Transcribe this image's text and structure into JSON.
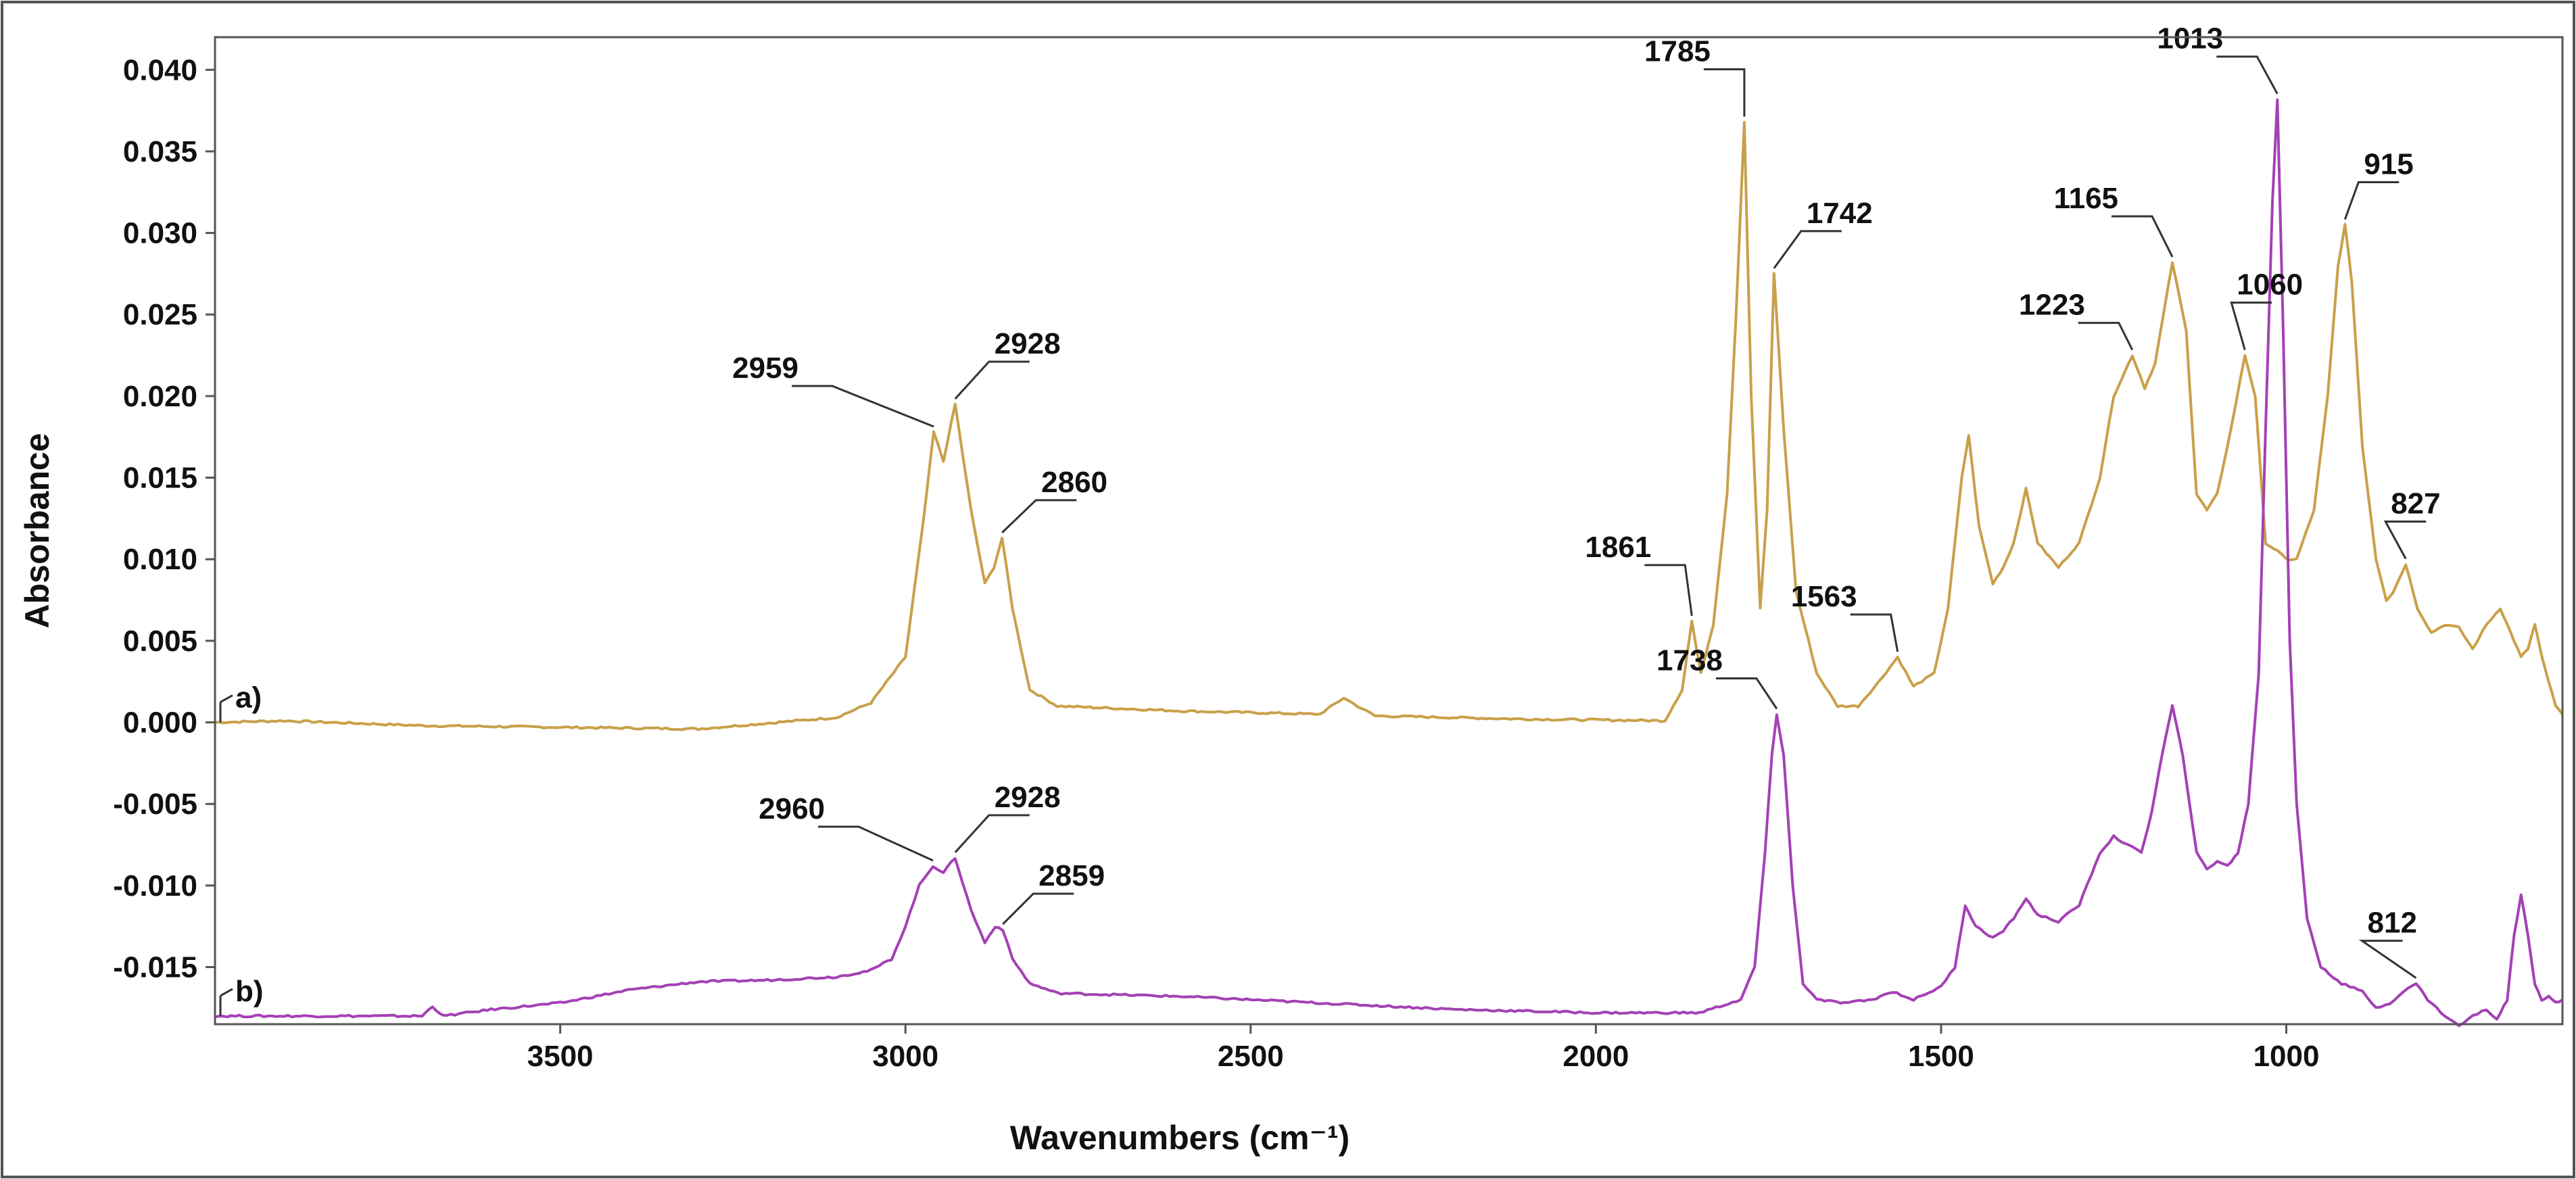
{
  "chart_data": {
    "type": "line",
    "title": "",
    "xlabel": "Wavenumbers (cm⁻¹)",
    "ylabel": "Absorbance",
    "x_reversed": true,
    "xlim": [
      4000,
      600
    ],
    "ylim": [
      -0.0185,
      0.042
    ],
    "x_ticks": [
      3500,
      3000,
      2500,
      2000,
      1500,
      1000
    ],
    "x_tick_labels": [
      "3500",
      "3000",
      "2500",
      "2000",
      "1500",
      "1000"
    ],
    "y_ticks": [
      0.04,
      0.035,
      0.03,
      0.025,
      0.02,
      0.015,
      0.01,
      0.005,
      0.0,
      -0.005,
      -0.01,
      -0.015
    ],
    "y_tick_labels": [
      "0.040",
      "0.035",
      "0.030",
      "0.025",
      "0.020",
      "0.015",
      "0.010",
      "0.005",
      "0.000",
      "-0.005",
      "-0.010",
      "-0.015"
    ],
    "grid": false,
    "series": [
      {
        "tag": "a)",
        "color": "#c9a04a",
        "points": [
          [
            4000,
            0.0
          ],
          [
            3900,
            0.0001
          ],
          [
            3700,
            -0.0002
          ],
          [
            3500,
            -0.0003
          ],
          [
            3300,
            -0.0004
          ],
          [
            3100,
            0.0003
          ],
          [
            3050,
            0.0012
          ],
          [
            3000,
            0.004
          ],
          [
            2975,
            0.012
          ],
          [
            2959,
            0.0178
          ],
          [
            2945,
            0.016
          ],
          [
            2928,
            0.0195
          ],
          [
            2905,
            0.013
          ],
          [
            2885,
            0.0085
          ],
          [
            2872,
            0.0095
          ],
          [
            2860,
            0.0113
          ],
          [
            2845,
            0.007
          ],
          [
            2820,
            0.002
          ],
          [
            2780,
            0.001
          ],
          [
            2600,
            0.0007
          ],
          [
            2400,
            0.0005
          ],
          [
            2365,
            0.0015
          ],
          [
            2345,
            0.001
          ],
          [
            2320,
            0.0004
          ],
          [
            2100,
            0.0002
          ],
          [
            1900,
            0.0001
          ],
          [
            1875,
            0.002
          ],
          [
            1861,
            0.0062
          ],
          [
            1848,
            0.003
          ],
          [
            1830,
            0.006
          ],
          [
            1810,
            0.014
          ],
          [
            1797,
            0.025
          ],
          [
            1785,
            0.0368
          ],
          [
            1775,
            0.02
          ],
          [
            1762,
            0.007
          ],
          [
            1752,
            0.013
          ],
          [
            1742,
            0.0275
          ],
          [
            1728,
            0.018
          ],
          [
            1710,
            0.008
          ],
          [
            1680,
            0.003
          ],
          [
            1650,
            0.001
          ],
          [
            1620,
            0.001
          ],
          [
            1590,
            0.0025
          ],
          [
            1563,
            0.004
          ],
          [
            1540,
            0.0022
          ],
          [
            1510,
            0.003
          ],
          [
            1490,
            0.007
          ],
          [
            1470,
            0.015
          ],
          [
            1460,
            0.0176
          ],
          [
            1445,
            0.012
          ],
          [
            1425,
            0.0085
          ],
          [
            1410,
            0.0095
          ],
          [
            1395,
            0.011
          ],
          [
            1377,
            0.0143
          ],
          [
            1360,
            0.011
          ],
          [
            1330,
            0.0095
          ],
          [
            1300,
            0.011
          ],
          [
            1270,
            0.015
          ],
          [
            1250,
            0.02
          ],
          [
            1223,
            0.0225
          ],
          [
            1205,
            0.0205
          ],
          [
            1190,
            0.022
          ],
          [
            1165,
            0.0282
          ],
          [
            1145,
            0.024
          ],
          [
            1130,
            0.014
          ],
          [
            1115,
            0.013
          ],
          [
            1100,
            0.014
          ],
          [
            1080,
            0.018
          ],
          [
            1060,
            0.0225
          ],
          [
            1045,
            0.02
          ],
          [
            1030,
            0.011
          ],
          [
            1013,
            0.0105
          ],
          [
            1000,
            0.01
          ],
          [
            985,
            0.01
          ],
          [
            960,
            0.013
          ],
          [
            940,
            0.02
          ],
          [
            925,
            0.028
          ],
          [
            915,
            0.0305
          ],
          [
            905,
            0.027
          ],
          [
            890,
            0.017
          ],
          [
            870,
            0.01
          ],
          [
            855,
            0.0075
          ],
          [
            845,
            0.008
          ],
          [
            827,
            0.0097
          ],
          [
            810,
            0.007
          ],
          [
            790,
            0.0055
          ],
          [
            770,
            0.006
          ],
          [
            750,
            0.0058
          ],
          [
            730,
            0.0045
          ],
          [
            710,
            0.006
          ],
          [
            690,
            0.007
          ],
          [
            675,
            0.0055
          ],
          [
            660,
            0.004
          ],
          [
            650,
            0.0045
          ],
          [
            640,
            0.006
          ],
          [
            630,
            0.004
          ],
          [
            620,
            0.0025
          ],
          [
            610,
            0.001
          ],
          [
            600,
            0.0005
          ]
        ]
      },
      {
        "tag": "b)",
        "color": "#a441b5",
        "points": [
          [
            4000,
            -0.018
          ],
          [
            3800,
            -0.018
          ],
          [
            3700,
            -0.018
          ],
          [
            3685,
            -0.0174
          ],
          [
            3670,
            -0.018
          ],
          [
            3600,
            -0.0176
          ],
          [
            3500,
            -0.0172
          ],
          [
            3400,
            -0.0164
          ],
          [
            3300,
            -0.0159
          ],
          [
            3200,
            -0.0158
          ],
          [
            3100,
            -0.0156
          ],
          [
            3050,
            -0.0152
          ],
          [
            3020,
            -0.0145
          ],
          [
            3000,
            -0.0125
          ],
          [
            2980,
            -0.01
          ],
          [
            2960,
            -0.0088
          ],
          [
            2945,
            -0.0092
          ],
          [
            2928,
            -0.0083
          ],
          [
            2905,
            -0.0115
          ],
          [
            2885,
            -0.0135
          ],
          [
            2870,
            -0.0125
          ],
          [
            2859,
            -0.0127
          ],
          [
            2845,
            -0.0145
          ],
          [
            2820,
            -0.016
          ],
          [
            2780,
            -0.0166
          ],
          [
            2600,
            -0.0168
          ],
          [
            2400,
            -0.0172
          ],
          [
            2200,
            -0.0176
          ],
          [
            2000,
            -0.0178
          ],
          [
            1850,
            -0.0178
          ],
          [
            1790,
            -0.017
          ],
          [
            1770,
            -0.015
          ],
          [
            1755,
            -0.008
          ],
          [
            1745,
            -0.002
          ],
          [
            1738,
            0.0005
          ],
          [
            1728,
            -0.002
          ],
          [
            1715,
            -0.01
          ],
          [
            1700,
            -0.016
          ],
          [
            1680,
            -0.017
          ],
          [
            1640,
            -0.0172
          ],
          [
            1600,
            -0.017
          ],
          [
            1570,
            -0.0165
          ],
          [
            1540,
            -0.017
          ],
          [
            1500,
            -0.0162
          ],
          [
            1480,
            -0.015
          ],
          [
            1465,
            -0.0112
          ],
          [
            1450,
            -0.0125
          ],
          [
            1425,
            -0.0132
          ],
          [
            1410,
            -0.0128
          ],
          [
            1395,
            -0.012
          ],
          [
            1377,
            -0.0108
          ],
          [
            1360,
            -0.0118
          ],
          [
            1330,
            -0.0122
          ],
          [
            1300,
            -0.0112
          ],
          [
            1270,
            -0.008
          ],
          [
            1250,
            -0.007
          ],
          [
            1230,
            -0.0075
          ],
          [
            1210,
            -0.008
          ],
          [
            1195,
            -0.0055
          ],
          [
            1180,
            -0.002
          ],
          [
            1165,
            0.001
          ],
          [
            1150,
            -0.002
          ],
          [
            1130,
            -0.008
          ],
          [
            1115,
            -0.009
          ],
          [
            1100,
            -0.0085
          ],
          [
            1085,
            -0.0088
          ],
          [
            1070,
            -0.008
          ],
          [
            1055,
            -0.005
          ],
          [
            1040,
            0.003
          ],
          [
            1030,
            0.018
          ],
          [
            1020,
            0.032
          ],
          [
            1013,
            0.0382
          ],
          [
            1005,
            0.025
          ],
          [
            995,
            0.005
          ],
          [
            985,
            -0.005
          ],
          [
            970,
            -0.012
          ],
          [
            950,
            -0.015
          ],
          [
            920,
            -0.016
          ],
          [
            890,
            -0.0165
          ],
          [
            870,
            -0.0175
          ],
          [
            850,
            -0.0172
          ],
          [
            830,
            -0.0165
          ],
          [
            812,
            -0.016
          ],
          [
            795,
            -0.017
          ],
          [
            770,
            -0.018
          ],
          [
            750,
            -0.0186
          ],
          [
            730,
            -0.018
          ],
          [
            710,
            -0.0176
          ],
          [
            695,
            -0.0182
          ],
          [
            680,
            -0.017
          ],
          [
            670,
            -0.013
          ],
          [
            660,
            -0.0106
          ],
          [
            650,
            -0.013
          ],
          [
            640,
            -0.016
          ],
          [
            630,
            -0.017
          ],
          [
            620,
            -0.0168
          ],
          [
            610,
            -0.0172
          ],
          [
            600,
            -0.017
          ]
        ]
      }
    ],
    "annotations": [
      {
        "text": "2959",
        "x": 2959,
        "y": 0.0178,
        "series": "a)"
      },
      {
        "text": "2928",
        "x": 2928,
        "y": 0.0195,
        "series": "a)"
      },
      {
        "text": "2860",
        "x": 2860,
        "y": 0.0113,
        "series": "a)"
      },
      {
        "text": "1861",
        "x": 1861,
        "y": 0.0062,
        "series": "a)"
      },
      {
        "text": "1785",
        "x": 1785,
        "y": 0.0368,
        "series": "a)"
      },
      {
        "text": "1742",
        "x": 1742,
        "y": 0.0275,
        "series": "a)"
      },
      {
        "text": "1563",
        "x": 1563,
        "y": 0.004,
        "series": "a)"
      },
      {
        "text": "1223",
        "x": 1223,
        "y": 0.0225,
        "series": "a)"
      },
      {
        "text": "1165",
        "x": 1165,
        "y": 0.0282,
        "series": "a)"
      },
      {
        "text": "1060",
        "x": 1060,
        "y": 0.0225,
        "series": "a)"
      },
      {
        "text": "1013",
        "x": 1013,
        "y": 0.0382,
        "series": "b)"
      },
      {
        "text": "915",
        "x": 915,
        "y": 0.0305,
        "series": "a)"
      },
      {
        "text": "827",
        "x": 827,
        "y": 0.0097,
        "series": "a)"
      },
      {
        "text": "1738",
        "x": 1738,
        "y": 0.0005,
        "series": "b)"
      },
      {
        "text": "2960",
        "x": 2960,
        "y": -0.0088,
        "series": "b)"
      },
      {
        "text": "2928",
        "x": 2928,
        "y": -0.0083,
        "series": "b)"
      },
      {
        "text": "2859",
        "x": 2859,
        "y": -0.0127,
        "series": "b)"
      },
      {
        "text": "812",
        "x": 812,
        "y": -0.016,
        "series": "b)"
      }
    ]
  }
}
